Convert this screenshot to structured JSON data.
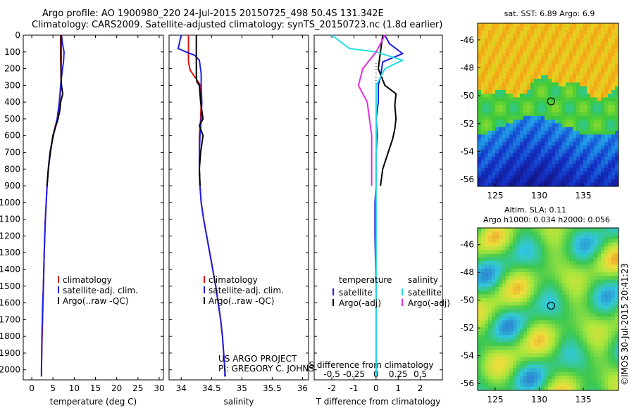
{
  "header": {
    "line1": "Argo profile: AO 1900980_220 24-Jul-2015 20150725_498 50.4S 131.342E",
    "line2": "Climatology: CARS2009. Satellite-adjusted climatology: synTS_20150723.nc (1.8d earlier)"
  },
  "project_note": {
    "line1": "US ARGO PROJECT",
    "line2": "PI: GREGORY C. JOHNSON"
  },
  "vertical_credit": "©IMOS 30-Jul-2015 20:41:23",
  "colors": {
    "climatology": "#e01010",
    "satellite": "#1e1ee6",
    "argo": "#000000",
    "sal_satellite": "#22e0e0",
    "sal_argo": "#e030e0"
  },
  "chart_data": [
    {
      "type": "line",
      "xlabel": "temperature (deg C)",
      "ylabel": "",
      "xlim": [
        -2,
        31
      ],
      "ylim": [
        2060,
        0
      ],
      "x_ticks": [
        "0",
        "5",
        "10",
        "15",
        "20",
        "25",
        "30"
      ],
      "y_ticks": [
        "0",
        "100",
        "200",
        "300",
        "400",
        "500",
        "600",
        "700",
        "800",
        "900",
        "1000",
        "1100",
        "1200",
        "1300",
        "1400",
        "1500",
        "1600",
        "1700",
        "1800",
        "1900",
        "2000"
      ],
      "legend": [
        "climatology",
        "satellite-adj. clim.",
        "Argo(..raw -QC)"
      ],
      "legend_position": "lower-center",
      "series": [
        {
          "name": "climatology",
          "color": "red",
          "points": [
            [
              6.8,
              0
            ],
            [
              6.8,
              60
            ],
            [
              6.8,
              150
            ],
            [
              6.9,
              230
            ],
            [
              6.9,
              300
            ],
            [
              6.5,
              400
            ],
            [
              6.0,
              500
            ],
            [
              5.0,
              600
            ],
            [
              4.3,
              700
            ],
            [
              3.9,
              800
            ],
            [
              3.6,
              900
            ],
            [
              3.4,
              1000
            ],
            [
              3.2,
              1100
            ],
            [
              3.05,
              1200
            ],
            [
              2.95,
              1300
            ],
            [
              2.85,
              1400
            ],
            [
              2.75,
              1500
            ],
            [
              2.65,
              1600
            ],
            [
              2.55,
              1700
            ],
            [
              2.45,
              1800
            ],
            [
              2.35,
              1900
            ],
            [
              2.3,
              2000
            ],
            [
              2.3,
              2040
            ]
          ]
        },
        {
          "name": "satellite-adj. clim.",
          "color": "blue",
          "points": [
            [
              7.0,
              0
            ],
            [
              7.3,
              60
            ],
            [
              7.6,
              100
            ],
            [
              7.5,
              150
            ],
            [
              7.0,
              250
            ],
            [
              6.8,
              300
            ],
            [
              6.5,
              400
            ],
            [
              6.0,
              500
            ],
            [
              5.1,
              600
            ],
            [
              4.3,
              700
            ],
            [
              3.9,
              800
            ],
            [
              3.6,
              900
            ],
            [
              3.4,
              1000
            ],
            [
              3.2,
              1100
            ],
            [
              3.05,
              1200
            ],
            [
              2.95,
              1300
            ],
            [
              2.85,
              1400
            ],
            [
              2.75,
              1500
            ],
            [
              2.6,
              1600
            ],
            [
              2.5,
              1700
            ],
            [
              2.4,
              1800
            ],
            [
              2.35,
              1900
            ],
            [
              2.3,
              2000
            ],
            [
              2.3,
              2040
            ]
          ]
        },
        {
          "name": "Argo(..raw -QC)",
          "color": "black",
          "points": [
            [
              6.9,
              0
            ],
            [
              6.9,
              100
            ],
            [
              6.9,
              200
            ],
            [
              6.9,
              250
            ],
            [
              7.0,
              300
            ],
            [
              7.3,
              350
            ],
            [
              6.8,
              400
            ],
            [
              6.6,
              450
            ],
            [
              6.2,
              500
            ],
            [
              5.6,
              550
            ],
            [
              5.0,
              600
            ],
            [
              4.4,
              700
            ],
            [
              3.9,
              800
            ],
            [
              3.6,
              900
            ]
          ]
        }
      ]
    },
    {
      "type": "line",
      "xlabel": "salinity",
      "ylabel": "",
      "xlim": [
        33.8,
        36.1
      ],
      "ylim": [
        2060,
        0
      ],
      "x_ticks": [
        "34",
        "34.5",
        "35",
        "35.5",
        "36"
      ],
      "legend": [
        "climatology",
        "satellite-adj. clim.",
        "Argo(..raw -QC)"
      ],
      "legend_position": "lower-center",
      "series": [
        {
          "name": "climatology",
          "color": "red",
          "points": [
            [
              34.12,
              0
            ],
            [
              34.12,
              160
            ],
            [
              34.15,
              210
            ],
            [
              34.32,
              300
            ],
            [
              34.33,
              400
            ],
            [
              34.32,
              500
            ],
            [
              34.3,
              600
            ],
            [
              34.3,
              700
            ],
            [
              34.3,
              800
            ],
            [
              34.31,
              900
            ],
            [
              34.33,
              1000
            ],
            [
              34.37,
              1100
            ],
            [
              34.42,
              1200
            ],
            [
              34.47,
              1300
            ],
            [
              34.52,
              1400
            ],
            [
              34.57,
              1500
            ],
            [
              34.61,
              1600
            ],
            [
              34.65,
              1700
            ],
            [
              34.68,
              1800
            ],
            [
              34.7,
              1900
            ],
            [
              34.72,
              2000
            ],
            [
              34.73,
              2040
            ]
          ]
        },
        {
          "name": "satellite-adj. clim.",
          "color": "blue",
          "points": [
            [
              34.0,
              0
            ],
            [
              33.95,
              80
            ],
            [
              34.08,
              100
            ],
            [
              34.22,
              120
            ],
            [
              34.3,
              150
            ],
            [
              34.33,
              230
            ],
            [
              34.33,
              300
            ],
            [
              34.34,
              400
            ],
            [
              34.33,
              500
            ],
            [
              34.31,
              600
            ],
            [
              34.3,
              700
            ],
            [
              34.3,
              800
            ],
            [
              34.31,
              900
            ],
            [
              34.33,
              1000
            ],
            [
              34.37,
              1100
            ],
            [
              34.42,
              1200
            ],
            [
              34.47,
              1300
            ],
            [
              34.52,
              1400
            ],
            [
              34.57,
              1500
            ],
            [
              34.61,
              1600
            ],
            [
              34.65,
              1700
            ],
            [
              34.68,
              1800
            ],
            [
              34.7,
              1900
            ],
            [
              34.72,
              2000
            ],
            [
              34.72,
              2040
            ]
          ]
        },
        {
          "name": "Argo(..raw -QC)",
          "color": "black",
          "points": [
            [
              34.25,
              0
            ],
            [
              34.25,
              200
            ],
            [
              34.25,
              250
            ],
            [
              34.26,
              280
            ],
            [
              34.3,
              300
            ],
            [
              34.32,
              400
            ],
            [
              34.36,
              500
            ],
            [
              34.3,
              540
            ],
            [
              34.36,
              600
            ],
            [
              34.32,
              700
            ],
            [
              34.3,
              800
            ],
            [
              34.31,
              900
            ]
          ]
        }
      ],
      "annotations": [
        "US ARGO PROJECT",
        "PI: GREGORY C. JOHNSON"
      ]
    },
    {
      "type": "line",
      "xlabel": "T difference from climatology",
      "x2label": "S difference from climatology",
      "xlim": [
        -2.8,
        3.0
      ],
      "x2lim": [
        -0.7,
        0.75
      ],
      "ylim": [
        2060,
        0
      ],
      "x_ticks": [
        "-2",
        "-1",
        "0",
        "1",
        "2"
      ],
      "x2_ticks": [
        "-0.5",
        "-0.25",
        "0",
        "0.25",
        "0.5"
      ],
      "legend_groups": [
        {
          "title": "temperature",
          "entries": [
            "satellite",
            "Argo(-adj)"
          ]
        },
        {
          "title": "salinity",
          "entries": [
            "satellite",
            "Argo(-adj)"
          ]
        }
      ],
      "series": [
        {
          "name": "temperature satellite",
          "color": "blue",
          "points": [
            [
              0.4,
              0
            ],
            [
              0.6,
              50
            ],
            [
              1.2,
              110
            ],
            [
              0.3,
              160
            ],
            [
              0.2,
              250
            ],
            [
              0.1,
              300
            ],
            [
              0.1,
              400
            ],
            [
              0.0,
              500
            ],
            [
              0.05,
              600
            ],
            [
              0.0,
              700
            ],
            [
              0.0,
              900
            ],
            [
              -0.05,
              1000
            ],
            [
              -0.05,
              1200
            ],
            [
              0,
              1500
            ],
            [
              0,
              2040
            ]
          ]
        },
        {
          "name": "temperature Argo(-adj)",
          "color": "black",
          "points": [
            [
              0.3,
              0
            ],
            [
              0.2,
              100
            ],
            [
              0.1,
              200
            ],
            [
              0.4,
              300
            ],
            [
              0.9,
              350
            ],
            [
              0.85,
              420
            ],
            [
              0.9,
              500
            ],
            [
              0.85,
              560
            ],
            [
              0.75,
              620
            ],
            [
              0.55,
              700
            ],
            [
              0.3,
              800
            ],
            [
              0.2,
              900
            ]
          ]
        },
        {
          "name": "salinity satellite",
          "color": "cyan",
          "points": [
            [
              -0.5,
              0
            ],
            [
              -0.3,
              80
            ],
            [
              0.0,
              100
            ],
            [
              0.3,
              150
            ],
            [
              0.1,
              200
            ],
            [
              0.0,
              300
            ],
            [
              0.0,
              500
            ],
            [
              0.0,
              700
            ],
            [
              0.0,
              1000
            ],
            [
              0,
              2040
            ]
          ]
        },
        {
          "name": "salinity Argo(-adj)",
          "color": "magenta",
          "points": [
            [
              0.1,
              0
            ],
            [
              0.0,
              100
            ],
            [
              -0.15,
              200
            ],
            [
              -0.2,
              300
            ],
            [
              -0.1,
              400
            ],
            [
              -0.05,
              600
            ],
            [
              -0.05,
              700
            ],
            [
              -0.05,
              850
            ],
            [
              -0.05,
              900
            ]
          ]
        }
      ]
    },
    {
      "type": "heatmap",
      "title": "sat. SST: 6.89  Argo: 6.9",
      "xlim": [
        123,
        139
      ],
      "ylim": [
        -56.5,
        -44.8
      ],
      "x_ticks": [
        "125",
        "130",
        "135"
      ],
      "y_ticks": [
        "-46",
        "-48",
        "-50",
        "-52",
        "-54",
        "-56"
      ],
      "marker": {
        "x": 131.34,
        "y": -50.4
      }
    },
    {
      "type": "heatmap",
      "title": "Altim. SLA: 0.11",
      "subtitle": "Argo h1000: 0.034  h2000: 0.056",
      "xlim": [
        123,
        139
      ],
      "ylim": [
        -56.5,
        -44.8
      ],
      "x_ticks": [
        "125",
        "130",
        "135"
      ],
      "y_ticks": [
        "-46",
        "-48",
        "-50",
        "-52",
        "-54",
        "-56"
      ],
      "marker": {
        "x": 131.34,
        "y": -50.4
      }
    }
  ]
}
